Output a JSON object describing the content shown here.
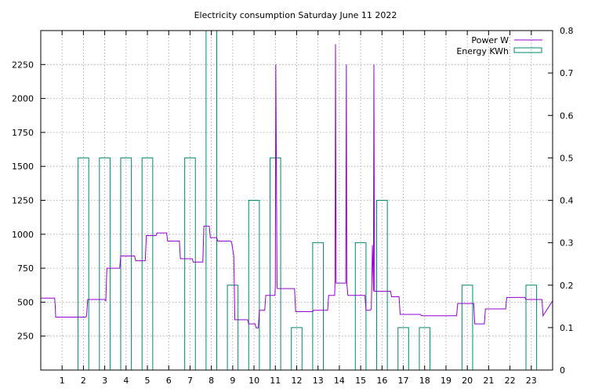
{
  "chart_data": {
    "type": "line",
    "title": "Electricity consumption Saturday June 11 2022",
    "xlabel": "",
    "ylabel": "",
    "y2label": "",
    "grid": true,
    "legend_placement": "top-right",
    "xlim": [
      0,
      24
    ],
    "ylim": [
      0,
      2500
    ],
    "y2lim": [
      0,
      0.8
    ],
    "x_ticks": [
      1,
      2,
      3,
      4,
      5,
      6,
      7,
      8,
      9,
      10,
      11,
      12,
      13,
      14,
      15,
      16,
      17,
      18,
      19,
      20,
      21,
      22,
      23
    ],
    "y_ticks": [
      250,
      500,
      750,
      1000,
      1250,
      1500,
      1750,
      2000,
      2250
    ],
    "y2_ticks": [
      0,
      0.1,
      0.2,
      0.3,
      0.4,
      0.5,
      0.6,
      0.7,
      0.8
    ],
    "series": [
      {
        "name": "Power W",
        "axis": "y",
        "style": "line",
        "color": "#9400d3",
        "x": [
          0,
          0.65,
          0.68,
          0.7,
          2.1,
          2.15,
          2.2,
          3.0,
          3.05,
          3.1,
          3.7,
          3.75,
          4.4,
          4.45,
          4.9,
          4.95,
          5.4,
          5.45,
          5.9,
          5.95,
          6.5,
          6.55,
          7.1,
          7.15,
          7.6,
          7.65,
          7.9,
          7.95,
          8.25,
          8.3,
          8.9,
          8.95,
          9.05,
          9.1,
          9.7,
          9.75,
          10.05,
          10.1,
          10.2,
          10.25,
          10.5,
          10.55,
          10.98,
          11.0,
          11.02,
          11.05,
          11.08,
          11.1,
          11.9,
          11.95,
          12.75,
          12.8,
          13.45,
          13.5,
          13.78,
          13.8,
          13.82,
          13.85,
          14.3,
          14.33,
          14.35,
          14.4,
          15.2,
          15.25,
          15.45,
          15.5,
          15.55,
          15.6,
          15.62,
          15.65,
          16.4,
          16.45,
          16.8,
          16.85,
          17.8,
          17.85,
          19.5,
          19.55,
          20.3,
          20.35,
          20.8,
          20.85,
          21.8,
          21.85,
          22.7,
          22.75,
          23.5,
          23.55,
          24.0
        ],
        "y": [
          530,
          530,
          470,
          390,
          390,
          400,
          520,
          520,
          510,
          750,
          750,
          840,
          840,
          805,
          805,
          990,
          990,
          1010,
          1010,
          950,
          950,
          820,
          820,
          795,
          795,
          1060,
          1060,
          975,
          975,
          950,
          950,
          940,
          840,
          370,
          370,
          340,
          340,
          310,
          310,
          440,
          440,
          550,
          550,
          630,
          2250,
          1450,
          610,
          600,
          600,
          430,
          430,
          440,
          440,
          550,
          550,
          660,
          2400,
          640,
          640,
          2250,
          640,
          550,
          550,
          440,
          440,
          450,
          920,
          580,
          2250,
          580,
          580,
          540,
          540,
          410,
          410,
          400,
          400,
          490,
          490,
          340,
          340,
          450,
          450,
          535,
          535,
          520,
          520,
          400,
          510
        ]
      },
      {
        "name": "Energy KWh",
        "axis": "y2",
        "style": "boxes",
        "color": "#00896e",
        "x": [
          2,
          3,
          4,
          5,
          7,
          8,
          9,
          10,
          11,
          12,
          13,
          15,
          16,
          17,
          18,
          20,
          23
        ],
        "y": [
          0.5,
          0.5,
          0.5,
          0.5,
          0.5,
          0.8,
          0.2,
          0.4,
          0.5,
          0.1,
          0.3,
          0.3,
          0.4,
          0.1,
          0.1,
          0.2,
          0.2
        ]
      }
    ]
  }
}
